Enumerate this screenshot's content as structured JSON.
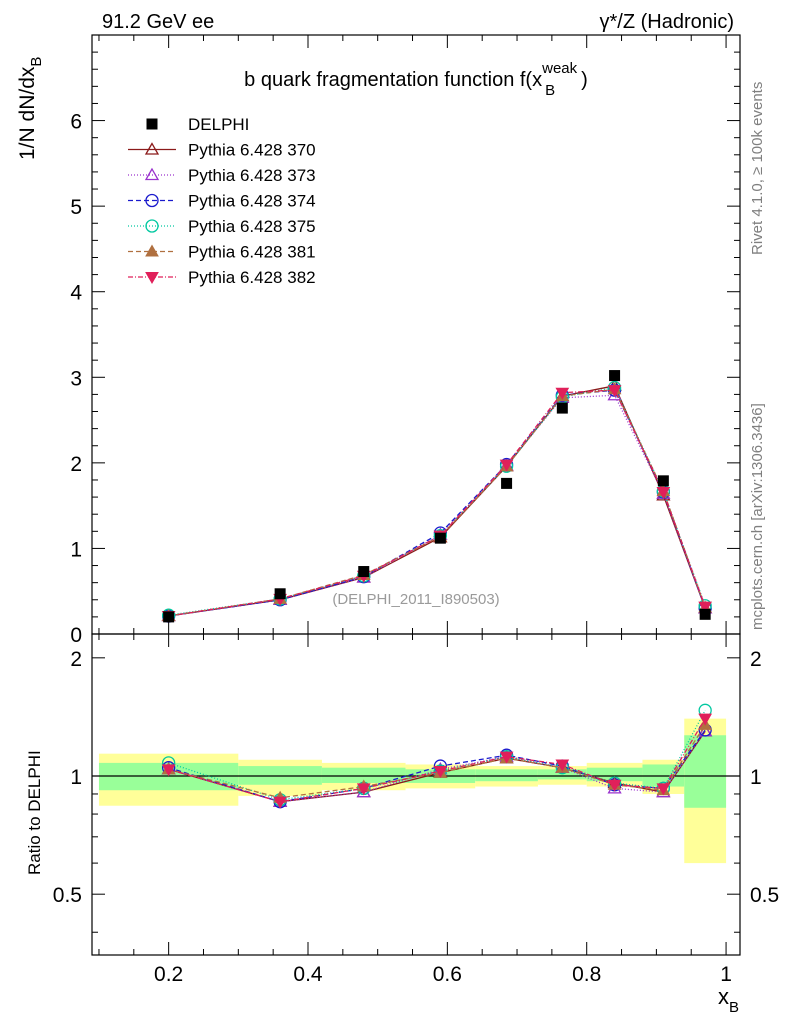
{
  "header": {
    "left": "91.2 GeV ee",
    "right": "γ*/Z (Hadronic)"
  },
  "side_labels": {
    "rivet": "Rivet 4.1.0, ≥ 100k events",
    "mcplots": "mcplots.cern.ch [arXiv:1306.3436]"
  },
  "chart_data": [
    {
      "type": "line",
      "title": "b quark fragmentation function f(x_B^weak)",
      "title_main": "b quark fragmentation function f(x",
      "title_sup": "weak",
      "title_sub": "B",
      "title_close": ")",
      "ylabel": "1/N  dN/dx_B",
      "ylabel_main": "1/N  dN/dx",
      "ylabel_sub": "B",
      "watermark": "(DELPHI_2011_I890503)",
      "xlim": [
        0.09,
        1.02
      ],
      "ylim": [
        0,
        7
      ],
      "yticks": [
        0,
        1,
        2,
        3,
        4,
        5,
        6
      ],
      "ytick_labels": [
        "0",
        "1",
        "2",
        "3",
        "4",
        "5",
        "6"
      ],
      "data": {
        "name": "DELPHI",
        "x": [
          0.2,
          0.36,
          0.48,
          0.59,
          0.685,
          0.765,
          0.84,
          0.91,
          0.97
        ],
        "y": [
          0.2,
          0.47,
          0.73,
          1.12,
          1.76,
          2.64,
          3.02,
          1.79,
          0.23
        ],
        "bins": [
          [
            0.1,
            0.3
          ],
          [
            0.3,
            0.42
          ],
          [
            0.42,
            0.54
          ],
          [
            0.54,
            0.64
          ],
          [
            0.64,
            0.73
          ],
          [
            0.73,
            0.8
          ],
          [
            0.8,
            0.88
          ],
          [
            0.88,
            0.94
          ],
          [
            0.94,
            1.0
          ]
        ]
      },
      "series": [
        {
          "name": "Pythia 6.428 370",
          "color": "#8b1a1a",
          "dash": "",
          "marker": "triangle-open",
          "y": [
            0.21,
            0.4,
            0.66,
            1.13,
            1.96,
            2.78,
            2.9,
            1.62,
            0.3
          ]
        },
        {
          "name": "Pythia 6.428 373",
          "color": "#9a32cd",
          "dash": "1,2",
          "marker": "triangle-open",
          "y": [
            0.21,
            0.4,
            0.66,
            1.16,
            1.97,
            2.76,
            2.79,
            1.64,
            0.3
          ]
        },
        {
          "name": "Pythia 6.428 374",
          "color": "#1a1acd",
          "dash": "5,3",
          "marker": "circle-open",
          "y": [
            0.21,
            0.4,
            0.67,
            1.18,
            1.98,
            2.79,
            2.85,
            1.66,
            0.3
          ]
        },
        {
          "name": "Pythia 6.428 375",
          "color": "#00c8a0",
          "dash": "1,2",
          "marker": "circle-open",
          "y": [
            0.22,
            0.41,
            0.68,
            1.15,
            1.96,
            2.77,
            2.88,
            1.67,
            0.33
          ]
        },
        {
          "name": "Pythia 6.428 381",
          "color": "#b07040",
          "dash": "5,3",
          "marker": "triangle-filled",
          "y": [
            0.21,
            0.41,
            0.69,
            1.14,
            1.96,
            2.78,
            2.86,
            1.67,
            0.31
          ]
        },
        {
          "name": "Pythia 6.428 382",
          "color": "#e0205a",
          "dash": "5,2,1,2",
          "marker": "triangle-down-filled",
          "y": [
            0.21,
            0.41,
            0.68,
            1.15,
            1.98,
            2.82,
            2.85,
            1.66,
            0.32
          ]
        }
      ]
    },
    {
      "type": "line",
      "ylabel": "Ratio to DELPHI",
      "xlabel": "x_B",
      "xlabel_main": "x",
      "xlabel_sub": "B",
      "xlim": [
        0.09,
        1.02
      ],
      "ylim": [
        0.35,
        2.3
      ],
      "yticks": [
        0.5,
        1,
        2
      ],
      "ytick_labels": [
        "0.5",
        "1",
        "2"
      ],
      "xticks": [
        0.2,
        0.4,
        0.6,
        0.8,
        1.0
      ],
      "xtick_labels": [
        "0.2",
        "0.4",
        "0.6",
        "0.8",
        "1"
      ],
      "bands": {
        "bins": [
          [
            0.1,
            0.3
          ],
          [
            0.3,
            0.42
          ],
          [
            0.42,
            0.54
          ],
          [
            0.54,
            0.64
          ],
          [
            0.64,
            0.73
          ],
          [
            0.73,
            0.8
          ],
          [
            0.8,
            0.88
          ],
          [
            0.88,
            0.94
          ],
          [
            0.94,
            1.0
          ]
        ],
        "yellow": [
          [
            0.84,
            1.14
          ],
          [
            0.89,
            1.1
          ],
          [
            0.92,
            1.08
          ],
          [
            0.93,
            1.07
          ],
          [
            0.94,
            1.06
          ],
          [
            0.95,
            1.06
          ],
          [
            0.94,
            1.08
          ],
          [
            0.9,
            1.1
          ],
          [
            0.6,
            1.4
          ]
        ],
        "green": [
          [
            0.92,
            1.08
          ],
          [
            0.95,
            1.06
          ],
          [
            0.96,
            1.05
          ],
          [
            0.96,
            1.04
          ],
          [
            0.97,
            1.04
          ],
          [
            0.98,
            1.04
          ],
          [
            0.97,
            1.05
          ],
          [
            0.94,
            1.07
          ],
          [
            0.83,
            1.27
          ]
        ]
      },
      "x": [
        0.2,
        0.36,
        0.48,
        0.59,
        0.685,
        0.765,
        0.84,
        0.91,
        0.97
      ],
      "series": [
        {
          "name": "Pythia 6.428 370",
          "y": [
            1.04,
            0.86,
            0.91,
            1.02,
            1.11,
            1.05,
            0.96,
            0.91,
            1.3
          ]
        },
        {
          "name": "Pythia 6.428 373",
          "y": [
            1.04,
            0.86,
            0.91,
            1.04,
            1.12,
            1.05,
            0.93,
            0.91,
            1.3
          ]
        },
        {
          "name": "Pythia 6.428 374",
          "y": [
            1.05,
            0.86,
            0.93,
            1.06,
            1.13,
            1.06,
            0.95,
            0.93,
            1.31
          ]
        },
        {
          "name": "Pythia 6.428 375",
          "y": [
            1.08,
            0.87,
            0.93,
            1.03,
            1.12,
            1.05,
            0.96,
            0.93,
            1.47
          ]
        },
        {
          "name": "Pythia 6.428 381",
          "y": [
            1.04,
            0.88,
            0.94,
            1.02,
            1.11,
            1.05,
            0.95,
            0.92,
            1.35
          ]
        },
        {
          "name": "Pythia 6.428 382",
          "y": [
            1.04,
            0.86,
            0.93,
            1.03,
            1.12,
            1.07,
            0.95,
            0.93,
            1.4
          ]
        }
      ]
    }
  ]
}
